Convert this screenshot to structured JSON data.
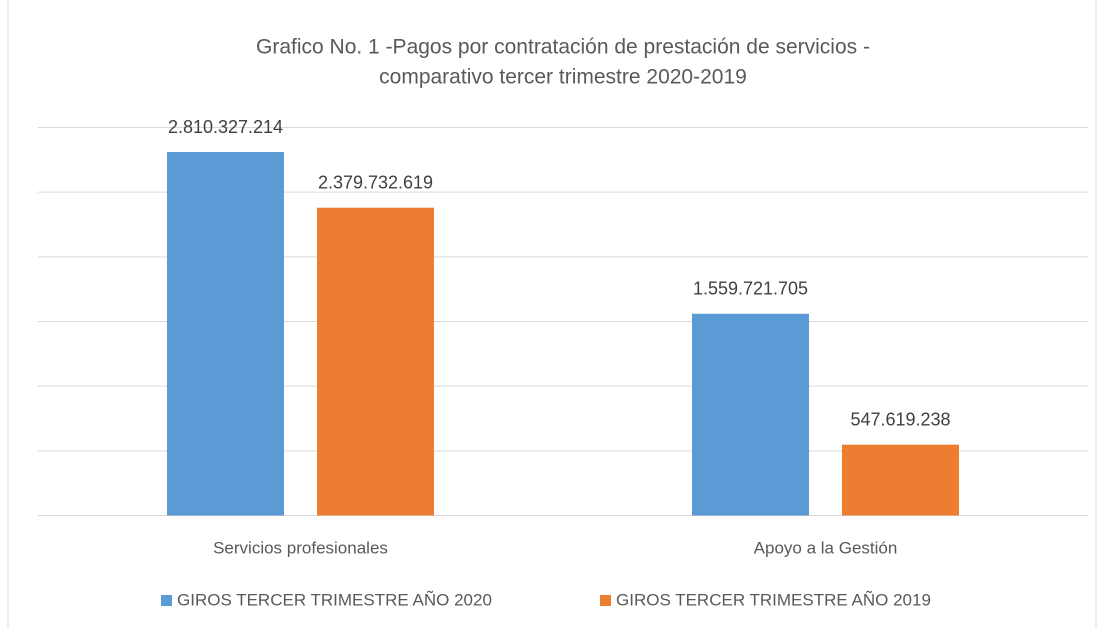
{
  "chart_data": {
    "type": "bar",
    "title": [
      "Grafico No. 1 -Pagos por contratación de prestación de servicios  -",
      "comparativo tercer trimestre 2020-2019"
    ],
    "categories": [
      "Servicios profesionales",
      "Apoyo a la Gestión"
    ],
    "series": [
      {
        "name": "GIROS TERCER TRIMESTRE AÑO 2020",
        "color": "#5b9bd5",
        "values": [
          2810327214,
          1559721705
        ],
        "value_labels": [
          "2.810.327.214",
          "1.559.721.705"
        ]
      },
      {
        "name": "GIROS TERCER TRIMESTRE AÑO 2019",
        "color": "#ed7d31",
        "values": [
          2379732619,
          547619238
        ],
        "value_labels": [
          "2.379.732.619",
          "547.619.238"
        ]
      }
    ],
    "ylim": [
      0,
      3000000000
    ],
    "yticks": [
      0,
      500000000,
      1000000000,
      1500000000,
      2000000000,
      2500000000,
      3000000000
    ],
    "grid": true,
    "legend": "bottom"
  }
}
